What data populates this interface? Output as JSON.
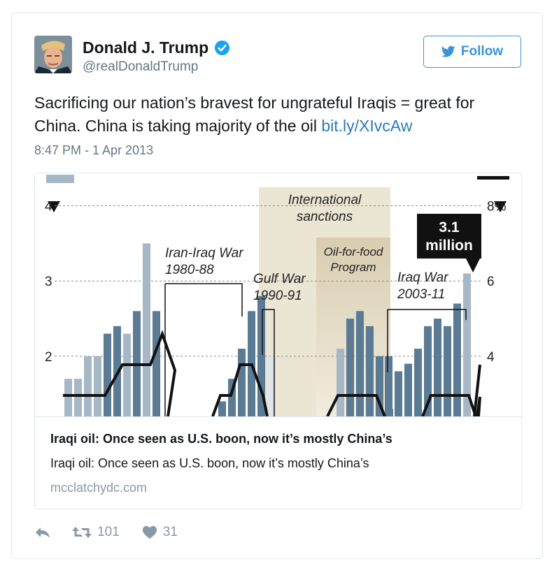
{
  "author": {
    "name": "Donald J. Trump",
    "handle": "@realDonaldTrump"
  },
  "follow_label": "Follow",
  "tweet": {
    "text": "Sacrificing our nation’s bravest for ungrateful Iraqis = great for China. China is taking majority of the oil ",
    "link": "bit.ly/XIvcAw",
    "timestamp": "8:47 PM - 1 Apr 2013"
  },
  "card": {
    "title": "Iraqi oil: Once seen as U.S. boon, now it’s mostly China’s",
    "description": "Iraqi oil: Once seen as U.S. boon, now it’s mostly China’s",
    "domain": "mcclatchydc.com"
  },
  "actions": {
    "retweets": "101",
    "likes": "31"
  },
  "icons": [
    "verified-icon",
    "twitter-bird-icon",
    "reply-icon",
    "retweet-icon",
    "heart-icon",
    "down-arrow-icon"
  ],
  "colors": {
    "link": "#2b7bb9",
    "follow": "#3b94d9",
    "bar_dark": "#5b7a93",
    "bar_light": "#a6b8c6",
    "band": "#e8e1cf"
  },
  "chart_data": {
    "type": "bar",
    "left_ticks": [
      "2",
      "3",
      "4"
    ],
    "right_ticks": [
      "4",
      "6",
      "8%"
    ],
    "annotations": {
      "sanctions": [
        "International",
        "sanctions"
      ],
      "oil_for_food": [
        "Oil-for-food",
        "Program"
      ],
      "iran_iraq": [
        "Iran-Iraq War",
        "1980-88"
      ],
      "gulf_war": [
        "Gulf War",
        "1990-91"
      ],
      "iraq_war": [
        "Iraq War",
        "2003-11"
      ],
      "callout": [
        "3.1",
        "million"
      ]
    },
    "ylim": [
      1.2,
      4.2
    ],
    "series": [
      {
        "values": [
          1.7,
          1.7,
          2.0,
          2.0,
          2.3,
          2.4,
          2.3,
          2.6,
          3.5,
          2.6
        ]
      },
      {
        "values": [
          1.1,
          1.4,
          1.7,
          2.1,
          2.6,
          2.8,
          2.0
        ]
      },
      {
        "values": [
          1.2,
          2.1,
          2.5,
          2.6,
          2.4,
          2.0,
          1.3
        ]
      },
      {
        "values": [
          2.0,
          1.8,
          1.9,
          2.1,
          2.4,
          2.5,
          2.4,
          2.7,
          3.1
        ]
      }
    ]
  }
}
